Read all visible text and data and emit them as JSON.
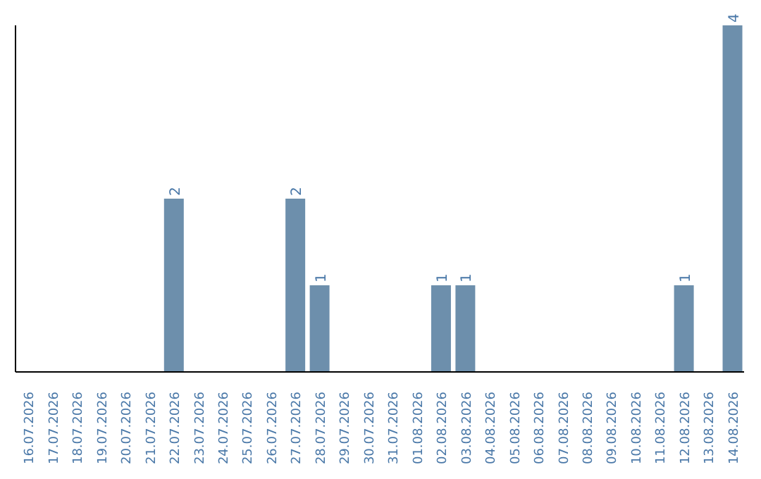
{
  "chart_data": {
    "type": "bar",
    "categories": [
      "16.07.2026",
      "17.07.2026",
      "18.07.2026",
      "19.07.2026",
      "20.07.2026",
      "21.07.2026",
      "22.07.2026",
      "23.07.2026",
      "24.07.2026",
      "25.07.2026",
      "26.07.2026",
      "27.07.2026",
      "28.07.2026",
      "29.07.2026",
      "30.07.2026",
      "31.07.2026",
      "01.08.2026",
      "02.08.2026",
      "03.08.2026",
      "04.08.2026",
      "05.08.2026",
      "06.08.2026",
      "07.08.2026",
      "08.08.2026",
      "09.08.2026",
      "10.08.2026",
      "11.08.2026",
      "12.08.2026",
      "13.08.2026",
      "14.08.2026"
    ],
    "values": [
      0,
      0,
      0,
      0,
      0,
      0,
      2,
      0,
      0,
      0,
      0,
      2,
      1,
      0,
      0,
      0,
      0,
      1,
      1,
      0,
      0,
      0,
      0,
      0,
      0,
      0,
      0,
      1,
      0,
      4
    ],
    "value_labels": [
      null,
      null,
      null,
      null,
      null,
      null,
      "2",
      null,
      null,
      null,
      null,
      "2",
      "1",
      null,
      null,
      null,
      null,
      "1",
      "1",
      null,
      null,
      null,
      null,
      null,
      null,
      null,
      null,
      "1",
      null,
      "4"
    ],
    "color": "#6d8fac",
    "grid": false,
    "legend": false,
    "tick_labels": "x"
  }
}
